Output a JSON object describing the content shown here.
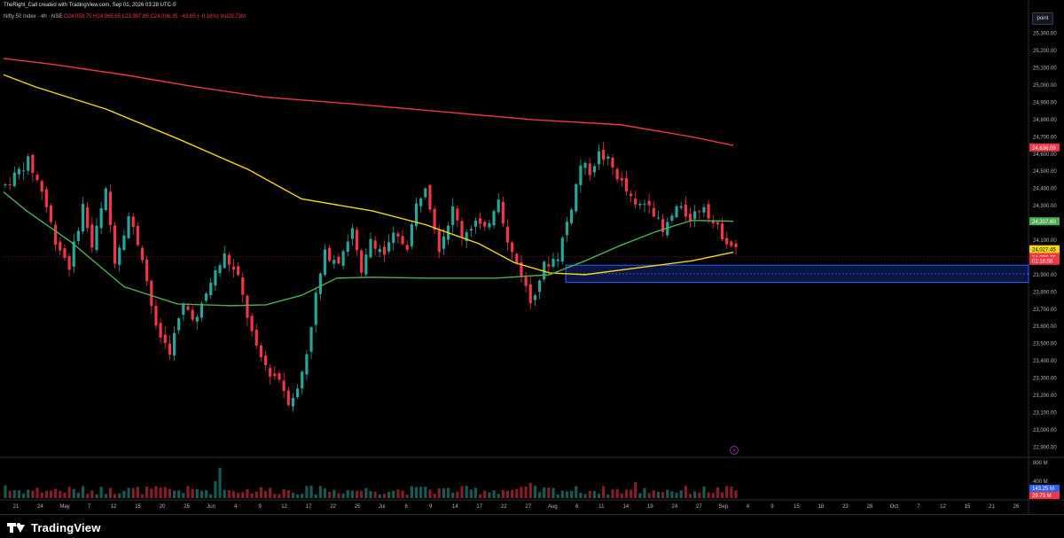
{
  "header": {
    "credit": "TheRight_Call created with TradingView.com, Sep 01, 2026 03:28 UTC-5",
    "symbol": "Nifty 50 Index · 4h · NSE",
    "ohlc": "O24,050.75 H24,065.65 L23,987.85 C24,006.35 −43.85 (−0.18%) Vol29.73M"
  },
  "unit_button": "point",
  "brand": "TradingView",
  "colors": {
    "up": "#26a69a",
    "down": "#f23645",
    "ma_red": "#f23645",
    "ma_yellow": "#f5d90a",
    "ma_green": "#4caf50",
    "zone": "#2962ff",
    "background": "#000000"
  },
  "chart_data": {
    "type": "candlestick",
    "title": "",
    "y_axis": {
      "range": [
        22850,
        25350
      ],
      "ticks": [
        "25,300.00",
        "25,200.00",
        "25,100.00",
        "25,000.00",
        "24,900.00",
        "24,800.00",
        "24,700.00",
        "24,600.00",
        "24,500.00",
        "24,400.00",
        "24,300.00",
        "24,200.00",
        "24,100.00",
        "23,900.00",
        "23,800.00",
        "23,700.00",
        "23,600.00",
        "23,500.00",
        "23,400.00",
        "23,300.00",
        "23,200.00",
        "23,100.00",
        "23,000.00",
        "22,900.00"
      ]
    },
    "x_axis": {
      "ticks": [
        "21",
        "24",
        "May",
        "7",
        "12",
        "15",
        "20",
        "25",
        "Jun",
        "4",
        "9",
        "12",
        "17",
        "22",
        "25",
        "Jul",
        "6",
        "9",
        "14",
        "17",
        "22",
        "27",
        "Aug",
        "6",
        "11",
        "14",
        "19",
        "24",
        "27",
        "Sep",
        "4",
        "9",
        "15",
        "18",
        "23",
        "28",
        "Oct",
        "7",
        "12",
        "15",
        "21",
        "26"
      ]
    },
    "price_labels": [
      {
        "text": "24,636.09",
        "color": "#f23645"
      },
      {
        "text": "24,207.60",
        "color": "#4caf50"
      },
      {
        "text": "24,027.45",
        "color": "#f5d90a"
      },
      {
        "text": "24,006.35",
        "color": "#f23645"
      },
      {
        "text": "01:16:58",
        "color": "#f23645"
      }
    ],
    "volume_axis": {
      "ticks": [
        "800 M",
        "400 M"
      ],
      "labels": [
        {
          "text": "143.25 M",
          "color": "#2962ff"
        },
        {
          "text": "29.73 M",
          "color": "#f23645"
        }
      ]
    },
    "demand_zone": {
      "top": 23955,
      "bottom": 23855
    },
    "series": [
      {
        "name": "MA red",
        "values_start_end": [
          25150,
          24636
        ]
      },
      {
        "name": "MA yellow",
        "values_start_end": [
          25060,
          24027
        ]
      },
      {
        "name": "MA green",
        "values_start_end": [
          24380,
          24207
        ]
      }
    ]
  }
}
